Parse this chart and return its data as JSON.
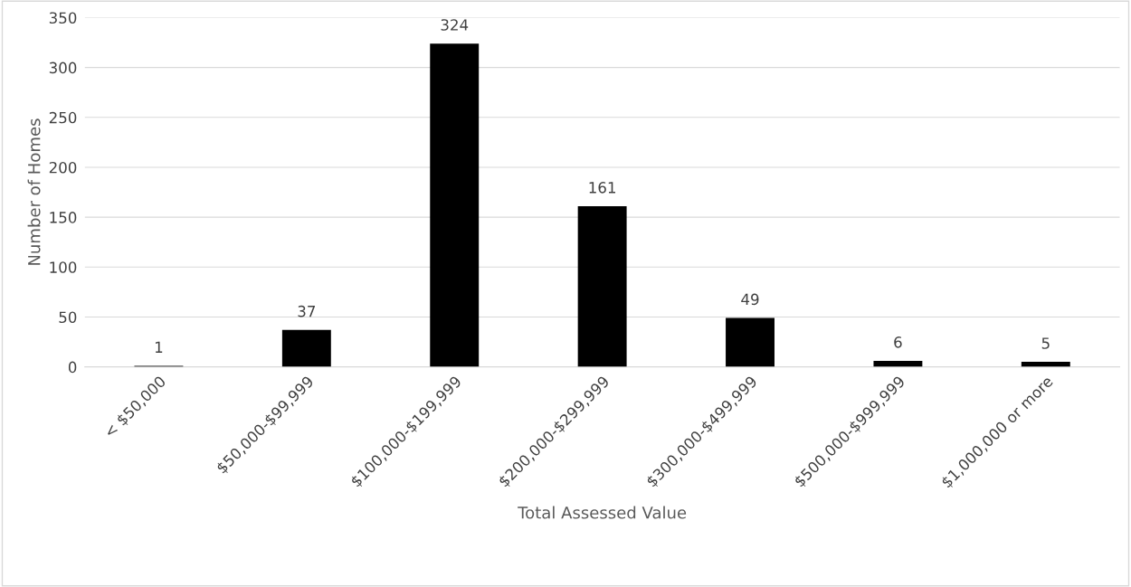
{
  "chart_data": {
    "type": "bar",
    "categories": [
      "< $50,000",
      "$50,000-$99,999",
      "$100,000-$199,999",
      "$200,000-$299,999",
      "$300,000-$499,999",
      "$500,000-$999,999",
      "$1,000,000 or more"
    ],
    "values": [
      1,
      37,
      324,
      161,
      49,
      6,
      5
    ],
    "color": "#000000",
    "xlabel": "Total Assessed Value",
    "ylabel": "Number of Homes",
    "ylim": [
      0,
      350
    ],
    "yticks": [
      0,
      50,
      100,
      150,
      200,
      250,
      300,
      350
    ],
    "grid": "y",
    "data_labels": true
  }
}
